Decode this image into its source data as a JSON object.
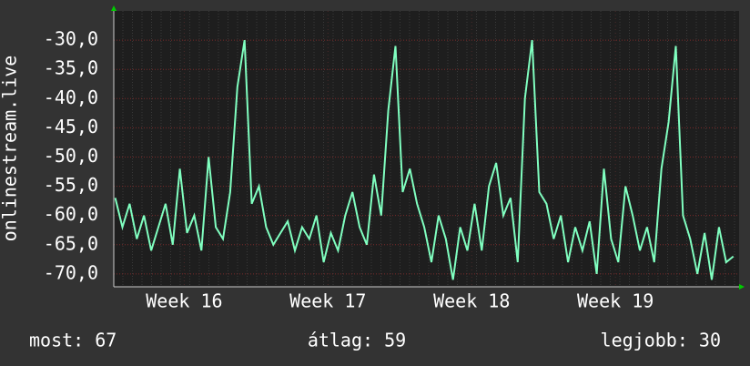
{
  "chart_data": {
    "type": "line",
    "y_label": "onlinestream.live",
    "xlim": [
      16.01,
      20.36
    ],
    "xticks": [
      {
        "value": 16.5,
        "label": "Week 16"
      },
      {
        "value": 17.5,
        "label": "Week 17"
      },
      {
        "value": 18.5,
        "label": "Week 18"
      },
      {
        "value": 19.5,
        "label": "Week 19"
      }
    ],
    "ylim": [
      -72.2,
      -25
    ],
    "yticks": [
      {
        "value": -30,
        "label": "-30,0"
      },
      {
        "value": -35,
        "label": "-35,0"
      },
      {
        "value": -40,
        "label": "-40,0"
      },
      {
        "value": -45,
        "label": "-45,0"
      },
      {
        "value": -50,
        "label": "-50,0"
      },
      {
        "value": -55,
        "label": "-55,0"
      },
      {
        "value": -60,
        "label": "-60,0"
      },
      {
        "value": -65,
        "label": "-65,0"
      },
      {
        "value": -70,
        "label": "-70,0"
      }
    ],
    "grid": true,
    "x": [
      16.02,
      16.07,
      16.12,
      16.17,
      16.22,
      16.27,
      16.32,
      16.37,
      16.42,
      16.47,
      16.52,
      16.57,
      16.62,
      16.67,
      16.72,
      16.77,
      16.82,
      16.87,
      16.92,
      16.97,
      17.02,
      17.07,
      17.12,
      17.17,
      17.22,
      17.27,
      17.32,
      17.37,
      17.42,
      17.47,
      17.52,
      17.57,
      17.62,
      17.67,
      17.72,
      17.77,
      17.82,
      17.87,
      17.92,
      17.97,
      18.02,
      18.07,
      18.12,
      18.17,
      18.22,
      18.27,
      18.32,
      18.37,
      18.42,
      18.47,
      18.52,
      18.57,
      18.62,
      18.67,
      18.72,
      18.77,
      18.82,
      18.87,
      18.92,
      18.97,
      19.02,
      19.07,
      19.12,
      19.17,
      19.22,
      19.27,
      19.32,
      19.37,
      19.42,
      19.47,
      19.52,
      19.57,
      19.62,
      19.67,
      19.72,
      19.77,
      19.82,
      19.87,
      19.92,
      19.97,
      20.02,
      20.07,
      20.12,
      20.17,
      20.22,
      20.27,
      20.32
    ],
    "series": [
      {
        "color": "#80ffc0",
        "values": [
          -57,
          -62,
          -58,
          -64,
          -60,
          -66,
          -62,
          -58,
          -65,
          -52,
          -63,
          -60,
          -66,
          -50,
          -62,
          -64,
          -56,
          -38,
          -30,
          -58,
          -55,
          -62,
          -65,
          -63,
          -61,
          -66,
          -62,
          -64,
          -60,
          -68,
          -63,
          -66,
          -60,
          -56,
          -62,
          -65,
          -53,
          -60,
          -42,
          -31,
          -56,
          -52,
          -58,
          -62,
          -68,
          -60,
          -64,
          -71,
          -62,
          -66,
          -58,
          -66,
          -55,
          -51,
          -60,
          -57,
          -68,
          -40,
          -30,
          -56,
          -58,
          -64,
          -60,
          -68,
          -62,
          -66,
          -61,
          -70,
          -52,
          -64,
          -68,
          -55,
          -60,
          -66,
          -62,
          -68,
          -52,
          -44,
          -31,
          -60,
          -64,
          -70,
          -63,
          -71,
          -62,
          -68,
          -67
        ]
      }
    ],
    "footer": [
      "most: 67",
      "átlag: 59",
      "legjobb: 30"
    ]
  }
}
